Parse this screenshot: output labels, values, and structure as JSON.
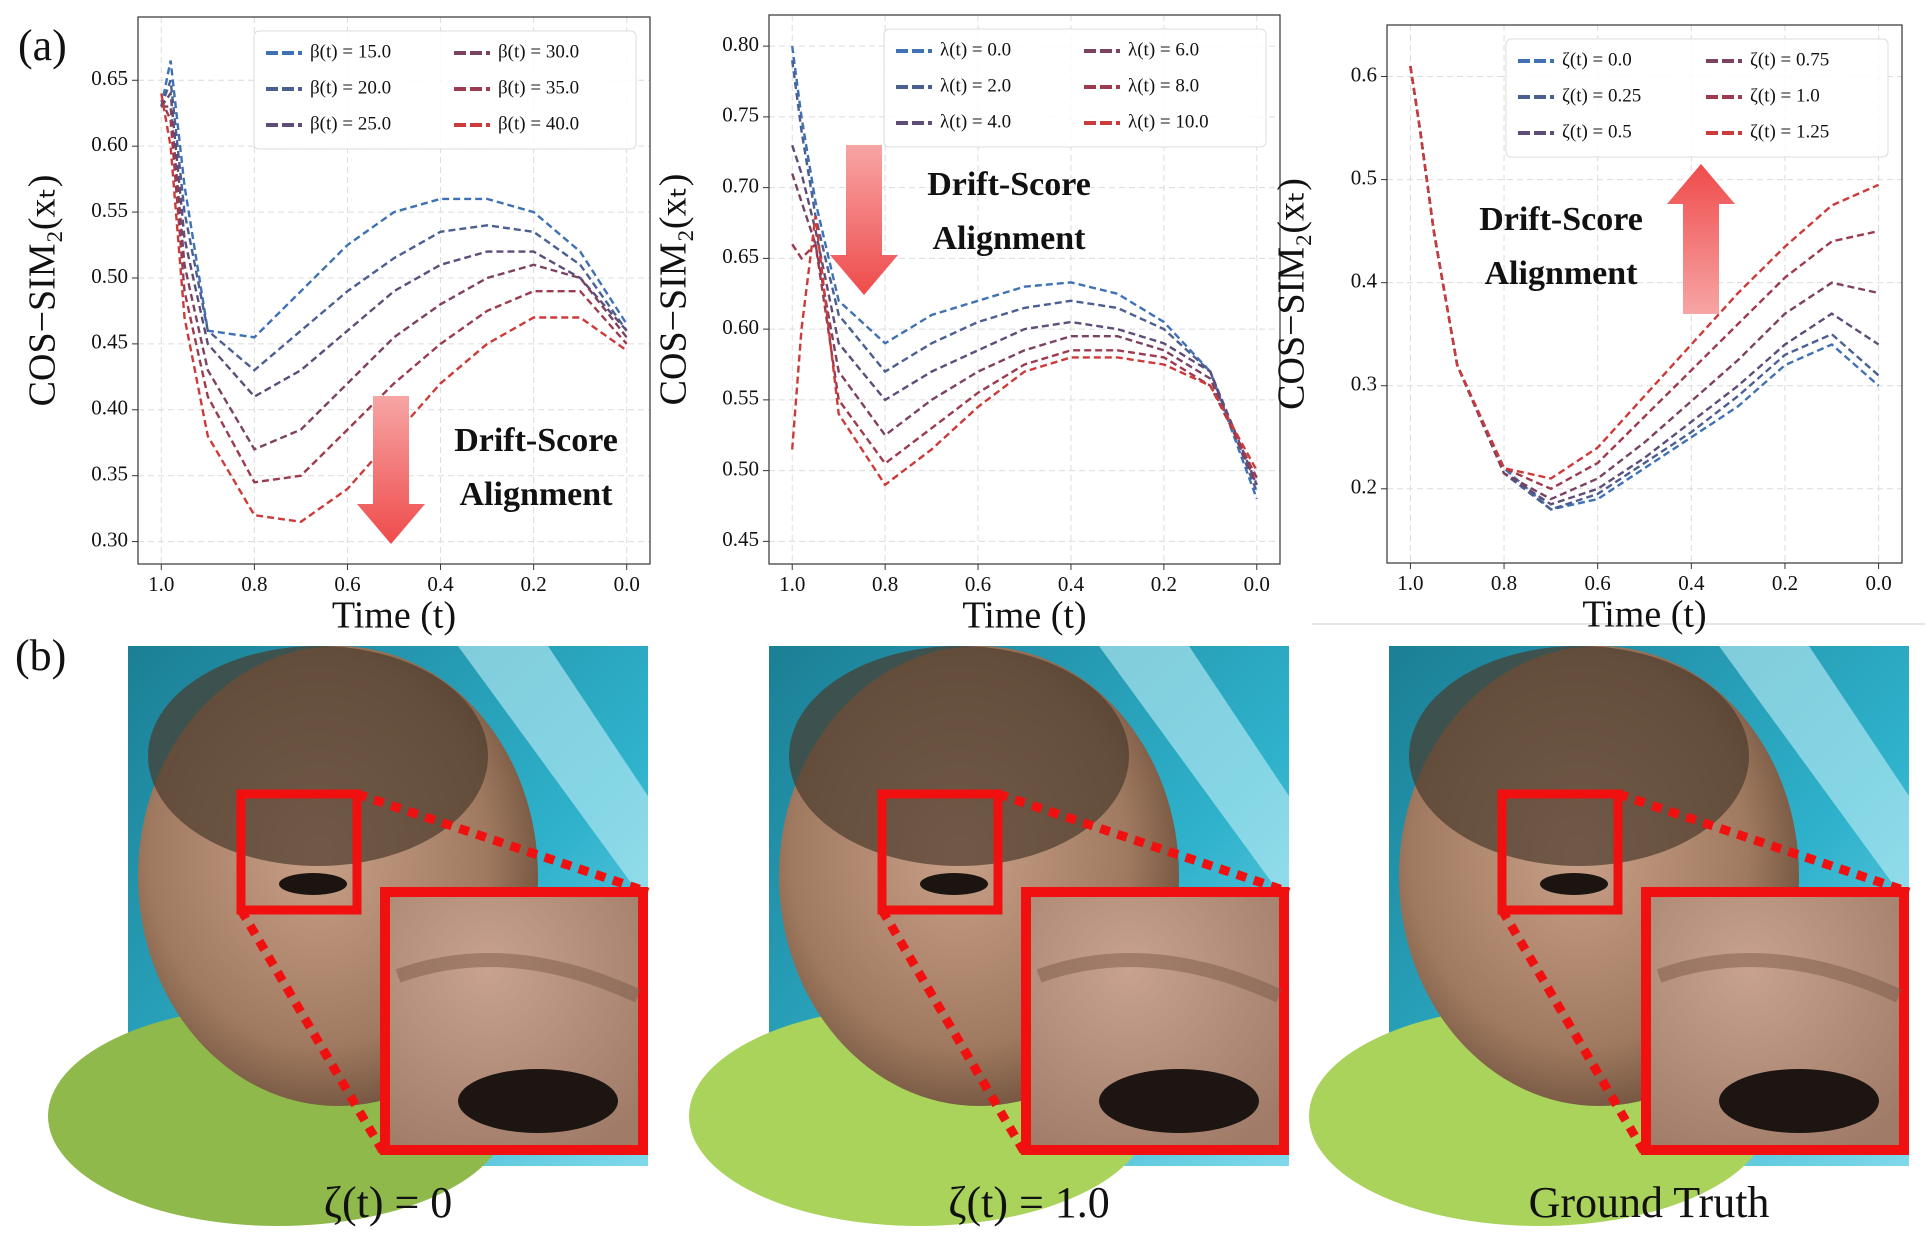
{
  "panel_labels": [
    "(a)",
    "(b)"
  ],
  "chart_data": [
    {
      "type": "line",
      "y_label": "COS−SIM₂(xₜ)",
      "x_label": "Time (t)",
      "x": [
        1.0,
        0.98,
        0.95,
        0.9,
        0.8,
        0.7,
        0.6,
        0.5,
        0.4,
        0.3,
        0.2,
        0.1,
        0.0
      ],
      "xlim": [
        1.05,
        -0.05
      ],
      "xticks": [
        {
          "value": 1.0,
          "label": "1.0"
        },
        0.8,
        0.6,
        0.4,
        0.2,
        {
          "value": 0.0,
          "label": "0.0"
        }
      ],
      "ylim": [
        0.283,
        0.698
      ],
      "yticks": [
        {
          "value": 0.3,
          "label": "0.30"
        },
        0.35,
        {
          "value": 0.4,
          "label": "0.40"
        },
        0.45,
        {
          "value": 0.5,
          "label": "0.50"
        },
        0.55,
        {
          "value": 0.6,
          "label": "0.60"
        },
        0.65
      ],
      "grid": true,
      "legend": "upper right",
      "annotation": [
        "Drift-Score",
        "Alignment"
      ],
      "arrow": "down",
      "series": [
        {
          "name": "β(t) = 15.0",
          "color": "#3f72b4",
          "values": [
            0.63,
            0.665,
            0.57,
            0.46,
            0.455,
            0.49,
            0.525,
            0.55,
            0.56,
            0.56,
            0.55,
            0.52,
            0.465
          ]
        },
        {
          "name": "β(t) = 20.0",
          "color": "#4c5f92",
          "values": [
            0.63,
            0.65,
            0.55,
            0.46,
            0.43,
            0.46,
            0.49,
            0.515,
            0.535,
            0.54,
            0.535,
            0.51,
            0.46
          ]
        },
        {
          "name": "β(t) = 25.0",
          "color": "#5d4d78",
          "values": [
            0.63,
            0.64,
            0.53,
            0.45,
            0.41,
            0.43,
            0.46,
            0.49,
            0.51,
            0.52,
            0.52,
            0.5,
            0.46
          ]
        },
        {
          "name": "β(t) = 30.0",
          "color": "#7c4261",
          "values": [
            0.63,
            0.63,
            0.51,
            0.43,
            0.37,
            0.385,
            0.42,
            0.455,
            0.48,
            0.5,
            0.51,
            0.5,
            0.455
          ]
        },
        {
          "name": "β(t) = 35.0",
          "color": "#9c3b4f",
          "values": [
            0.635,
            0.62,
            0.49,
            0.41,
            0.345,
            0.35,
            0.385,
            0.42,
            0.45,
            0.475,
            0.49,
            0.49,
            0.45
          ]
        },
        {
          "name": "β(t) = 40.0",
          "color": "#cc3b39",
          "values": [
            0.64,
            0.6,
            0.47,
            0.38,
            0.32,
            0.315,
            0.34,
            0.38,
            0.42,
            0.45,
            0.47,
            0.47,
            0.445
          ]
        }
      ]
    },
    {
      "type": "line",
      "y_label": "COS−SIM₂(xₜ)",
      "x_label": "Time (t)",
      "x": [
        1.0,
        0.98,
        0.95,
        0.9,
        0.8,
        0.7,
        0.6,
        0.5,
        0.4,
        0.3,
        0.2,
        0.1,
        0.0
      ],
      "xlim": [
        1.05,
        -0.05
      ],
      "xticks": [
        {
          "value": 1.0,
          "label": "1.0"
        },
        0.8,
        0.6,
        0.4,
        0.2,
        {
          "value": 0.0,
          "label": "0.0"
        }
      ],
      "ylim": [
        0.434,
        0.822
      ],
      "yticks": [
        0.45,
        {
          "value": 0.5,
          "label": "0.50"
        },
        0.55,
        {
          "value": 0.6,
          "label": "0.60"
        },
        0.65,
        {
          "value": 0.7,
          "label": "0.70"
        },
        0.75,
        {
          "value": 0.8,
          "label": "0.80"
        }
      ],
      "grid": true,
      "legend": "upper right",
      "annotation": [
        "Drift-Score",
        "Alignment"
      ],
      "arrow": "down",
      "series": [
        {
          "name": "λ(t) = 0.0",
          "color": "#3f72b4",
          "values": [
            0.8,
            0.75,
            0.69,
            0.62,
            0.59,
            0.61,
            0.62,
            0.63,
            0.633,
            0.625,
            0.605,
            0.57,
            0.48
          ]
        },
        {
          "name": "λ(t) = 2.0",
          "color": "#4c5f92",
          "values": [
            0.79,
            0.74,
            0.68,
            0.61,
            0.57,
            0.59,
            0.605,
            0.615,
            0.62,
            0.615,
            0.6,
            0.57,
            0.485
          ]
        },
        {
          "name": "λ(t) = 4.0",
          "color": "#5d4d78",
          "values": [
            0.73,
            0.71,
            0.67,
            0.59,
            0.55,
            0.57,
            0.585,
            0.6,
            0.605,
            0.6,
            0.59,
            0.57,
            0.49
          ]
        },
        {
          "name": "λ(t) = 6.0",
          "color": "#7c4261",
          "values": [
            0.71,
            0.69,
            0.66,
            0.57,
            0.525,
            0.55,
            0.57,
            0.585,
            0.595,
            0.595,
            0.585,
            0.565,
            0.49
          ]
        },
        {
          "name": "λ(t) = 8.0",
          "color": "#9c3b4f",
          "values": [
            0.66,
            0.65,
            0.66,
            0.55,
            0.505,
            0.53,
            0.555,
            0.575,
            0.585,
            0.585,
            0.58,
            0.56,
            0.495
          ]
        },
        {
          "name": "λ(t) = 10.0",
          "color": "#cc3b39",
          "values": [
            0.515,
            0.6,
            0.68,
            0.54,
            0.49,
            0.515,
            0.545,
            0.57,
            0.58,
            0.58,
            0.575,
            0.56,
            0.5
          ]
        }
      ]
    },
    {
      "type": "line",
      "y_label": "COS−SIM₂(xₜ)",
      "x_label": "Time (t)",
      "x": [
        1.0,
        0.98,
        0.95,
        0.9,
        0.8,
        0.7,
        0.6,
        0.5,
        0.4,
        0.3,
        0.2,
        0.1,
        0.0
      ],
      "xlim": [
        1.05,
        -0.05
      ],
      "xticks": [
        {
          "value": 1.0,
          "label": "1.0"
        },
        0.8,
        0.6,
        0.4,
        0.2,
        {
          "value": 0.0,
          "label": "0.0"
        }
      ],
      "ylim": [
        0.128,
        0.65
      ],
      "yticks": [
        0.2,
        0.3,
        0.4,
        0.5,
        0.6
      ],
      "grid": true,
      "legend": "upper right",
      "annotation": [
        "Drift-Score",
        "Alignment"
      ],
      "arrow": "up",
      "series": [
        {
          "name": "ζ(t) = 0.0",
          "color": "#3f72b4",
          "values": [
            0.61,
            0.55,
            0.45,
            0.32,
            0.22,
            0.18,
            0.19,
            0.22,
            0.25,
            0.28,
            0.32,
            0.34,
            0.3
          ]
        },
        {
          "name": "ζ(t) = 0.25",
          "color": "#4c5f92",
          "values": [
            0.61,
            0.55,
            0.45,
            0.32,
            0.215,
            0.18,
            0.195,
            0.225,
            0.255,
            0.29,
            0.33,
            0.35,
            0.31
          ]
        },
        {
          "name": "ζ(t) = 0.5",
          "color": "#5d4d78",
          "values": [
            0.61,
            0.55,
            0.45,
            0.32,
            0.215,
            0.185,
            0.2,
            0.23,
            0.265,
            0.3,
            0.34,
            0.37,
            0.34
          ]
        },
        {
          "name": "ζ(t) = 0.75",
          "color": "#7c4261",
          "values": [
            0.61,
            0.55,
            0.45,
            0.32,
            0.215,
            0.19,
            0.21,
            0.245,
            0.285,
            0.325,
            0.37,
            0.4,
            0.39
          ]
        },
        {
          "name": "ζ(t) = 1.0",
          "color": "#9c3b4f",
          "values": [
            0.61,
            0.55,
            0.45,
            0.32,
            0.22,
            0.2,
            0.225,
            0.27,
            0.315,
            0.36,
            0.405,
            0.44,
            0.45
          ]
        },
        {
          "name": "ζ(t) = 1.25",
          "color": "#cc3b39",
          "values": [
            0.61,
            0.55,
            0.45,
            0.32,
            0.22,
            0.21,
            0.24,
            0.29,
            0.34,
            0.39,
            0.435,
            0.475,
            0.495
          ]
        }
      ]
    }
  ],
  "images": [
    {
      "caption": "ζ(t) = 0"
    },
    {
      "caption": "ζ(t) = 1.0"
    },
    {
      "caption": "Ground Truth"
    }
  ]
}
